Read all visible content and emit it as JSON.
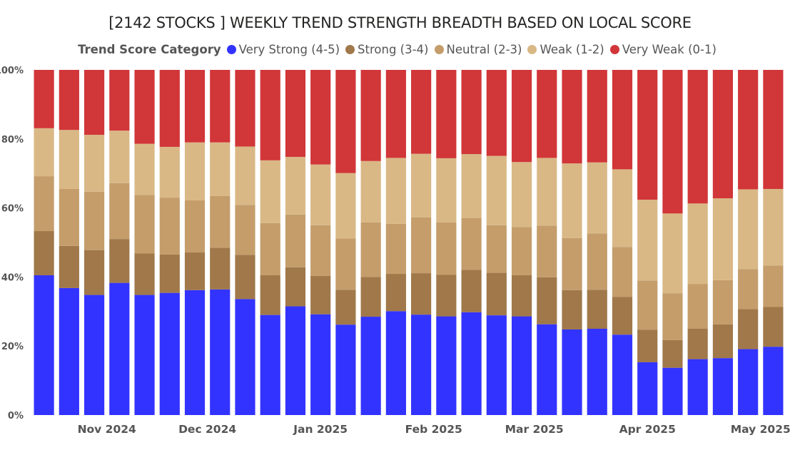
{
  "chart_data": {
    "type": "bar",
    "stacked": true,
    "percent": true,
    "title": "[2142 STOCKS ] WEEKLY TREND STRENGTH BREADTH BASED ON LOCAL SCORE",
    "legend_title": "Trend Score Category",
    "legend_position": "top",
    "ylim": [
      0,
      100
    ],
    "y_ticks": [
      "0%",
      "20%",
      "40%",
      "60%",
      "80%",
      "100%"
    ],
    "y_tick_values": [
      0,
      20,
      40,
      60,
      80,
      100
    ],
    "x_month_labels": [
      {
        "label": "Nov 2024",
        "center_index": 2.5
      },
      {
        "label": "Dec 2024",
        "center_index": 6.5
      },
      {
        "label": "Jan 2025",
        "center_index": 11
      },
      {
        "label": "Feb 2025",
        "center_index": 15.5
      },
      {
        "label": "Mar 2025",
        "center_index": 19.5
      },
      {
        "label": "Apr 2025",
        "center_index": 24
      },
      {
        "label": "May 2025",
        "center_index": 28.5
      }
    ],
    "bar_count": 30,
    "series": [
      {
        "name": "Very Strong (4-5)",
        "color": "#3333ff",
        "values": [
          40.5,
          36.8,
          34.8,
          38.3,
          34.8,
          35.4,
          36.2,
          36.4,
          33.6,
          29.0,
          31.5,
          29.2,
          26.2,
          28.5,
          30.1,
          29.1,
          28.6,
          29.8,
          28.9,
          28.6,
          26.3,
          24.8,
          25.0,
          23.3,
          15.3,
          13.7,
          16.2,
          16.5,
          19.1,
          19.8
        ]
      },
      {
        "name": "Strong (3-4)",
        "color": "#a0784a",
        "values": [
          12.8,
          12.2,
          13.0,
          12.7,
          12.0,
          11.1,
          10.9,
          12.1,
          12.8,
          11.5,
          11.3,
          11.1,
          10.1,
          11.5,
          10.8,
          12.0,
          12.0,
          12.3,
          12.3,
          11.9,
          13.6,
          11.4,
          11.3,
          10.9,
          9.4,
          8.0,
          8.8,
          9.8,
          11.6,
          11.5
        ]
      },
      {
        "name": "Neutral (2-3)",
        "color": "#c49d6b",
        "values": [
          15.9,
          16.5,
          16.9,
          16.2,
          17.0,
          16.5,
          15.1,
          15.0,
          14.5,
          15.1,
          15.3,
          14.7,
          14.9,
          15.8,
          14.5,
          16.2,
          15.2,
          15.0,
          13.8,
          14.0,
          15.0,
          15.1,
          16.3,
          14.5,
          14.3,
          13.6,
          13.0,
          12.8,
          11.6,
          12.0
        ]
      },
      {
        "name": "Weak (1-2)",
        "color": "#d9b886",
        "values": [
          13.9,
          17.1,
          16.5,
          15.2,
          14.8,
          14.7,
          16.8,
          15.5,
          16.9,
          18.2,
          16.7,
          17.6,
          18.9,
          17.8,
          19.1,
          18.4,
          18.6,
          18.5,
          20.1,
          18.8,
          19.6,
          21.6,
          20.6,
          22.5,
          23.4,
          23.1,
          23.3,
          23.7,
          23.1,
          22.2
        ]
      },
      {
        "name": "Very Weak (0-1)",
        "color": "#d13639",
        "values": [
          16.9,
          17.4,
          18.8,
          17.6,
          21.4,
          22.3,
          21.0,
          21.0,
          22.2,
          26.2,
          25.2,
          27.4,
          29.9,
          26.4,
          25.5,
          24.3,
          25.6,
          24.4,
          24.9,
          26.7,
          25.5,
          27.1,
          26.8,
          28.8,
          37.6,
          41.6,
          38.7,
          37.2,
          34.6,
          34.5
        ]
      }
    ]
  }
}
